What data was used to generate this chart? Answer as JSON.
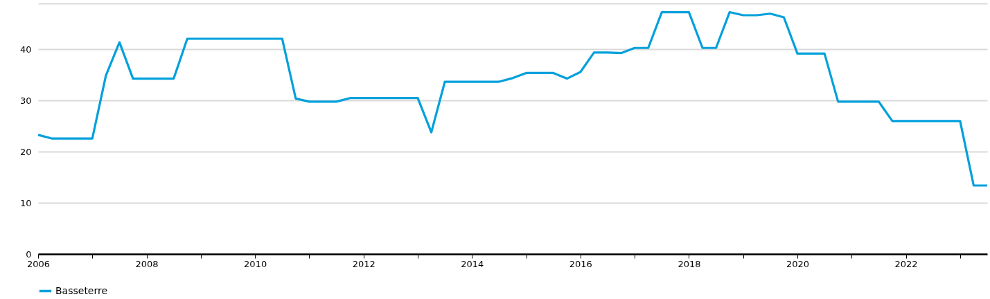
{
  "chart_data": {
    "type": "line",
    "x": [
      2006,
      2006.25,
      2006.5,
      2006.75,
      2007,
      2007.25,
      2007.5,
      2007.75,
      2008,
      2008.25,
      2008.5,
      2008.75,
      2009,
      2009.25,
      2009.5,
      2009.75,
      2010,
      2010.25,
      2010.5,
      2010.75,
      2011,
      2011.25,
      2011.5,
      2011.75,
      2012,
      2012.25,
      2012.5,
      2012.75,
      2013,
      2013.25,
      2013.5,
      2013.75,
      2014,
      2014.25,
      2014.5,
      2014.75,
      2015,
      2015.25,
      2015.5,
      2015.75,
      2016,
      2016.25,
      2016.5,
      2016.75,
      2017,
      2017.25,
      2017.5,
      2017.75,
      2018,
      2018.25,
      2018.5,
      2018.75,
      2019,
      2019.25,
      2019.5,
      2019.75,
      2020,
      2020.25,
      2020.5,
      2020.75,
      2021,
      2021.25,
      2021.5,
      2021.75,
      2022,
      2022.25,
      2022.5,
      2022.75,
      2023,
      2023.25,
      2023.5
    ],
    "series": [
      {
        "name": "Basseterre",
        "color": "#00a0dc",
        "values": [
          23.3,
          22.6,
          22.6,
          22.6,
          22.6,
          34.9,
          41.4,
          34.3,
          34.3,
          34.3,
          34.3,
          42.1,
          42.1,
          42.1,
          42.1,
          42.1,
          42.1,
          42.1,
          42.1,
          30.4,
          29.8,
          29.8,
          29.8,
          30.5,
          30.5,
          30.5,
          30.5,
          30.5,
          30.5,
          23.8,
          33.7,
          33.7,
          33.7,
          33.7,
          33.7,
          34.4,
          35.4,
          35.4,
          35.4,
          34.3,
          35.6,
          39.4,
          39.4,
          39.3,
          40.3,
          40.3,
          47.3,
          47.3,
          47.3,
          40.3,
          40.3,
          47.3,
          46.7,
          46.7,
          47.0,
          46.3,
          39.2,
          39.2,
          39.2,
          29.8,
          29.8,
          29.8,
          29.8,
          26.0,
          26.0,
          26.0,
          26.0,
          26.0,
          26.0,
          13.4,
          13.4
        ]
      }
    ],
    "xlim": [
      2006,
      2023.5
    ],
    "xticks": [
      2006,
      {
        "value": 2007,
        "label": null
      },
      2008,
      {
        "value": 2009,
        "label": null
      },
      2010,
      {
        "value": 2011,
        "label": null
      },
      2012,
      {
        "value": 2013,
        "label": null
      },
      2014,
      {
        "value": 2015,
        "label": null
      },
      2016,
      {
        "value": 2017,
        "label": null
      },
      2018,
      {
        "value": 2019,
        "label": null
      },
      2020,
      {
        "value": 2021,
        "label": null
      },
      2022,
      {
        "value": 2023,
        "label": null
      }
    ],
    "ylim": [
      0,
      49
    ],
    "yticks": [
      0,
      10,
      20,
      30,
      40,
      {
        "value": 49,
        "label": null
      }
    ],
    "grid": "y",
    "legend": "bottom",
    "marker": "none",
    "line_style": "solid"
  }
}
